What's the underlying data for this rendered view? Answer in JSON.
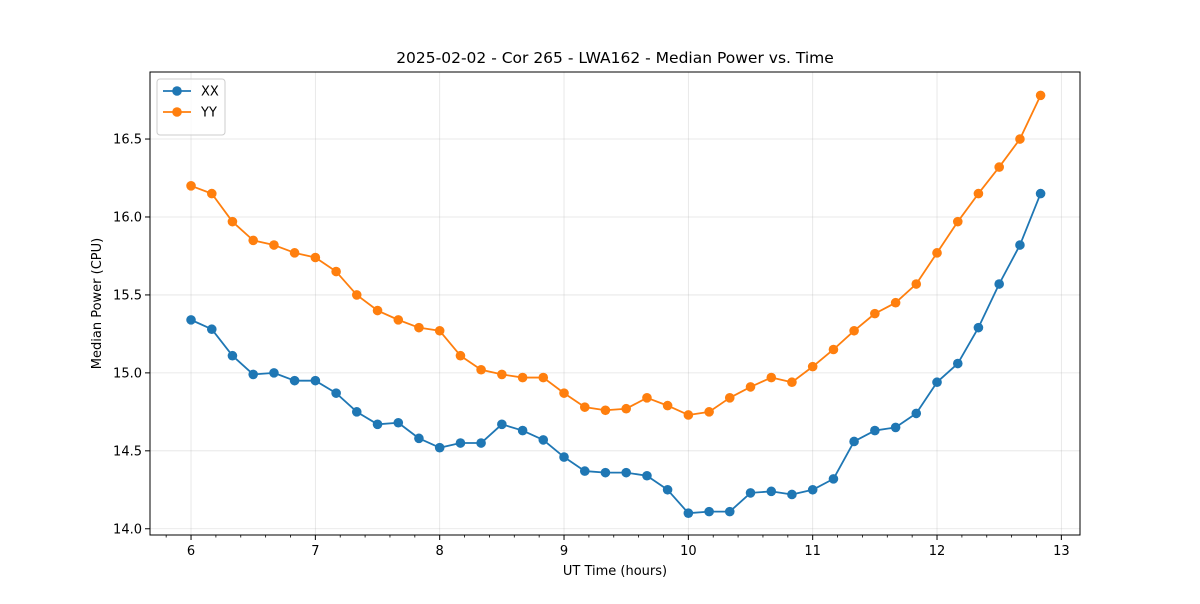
{
  "chart_data": {
    "type": "line",
    "title": "2025-02-02 - Cor 265 - LWA162 - Median Power vs. Time",
    "xlabel": "UT Time (hours)",
    "ylabel": "Median Power (CPU)",
    "xlim": [
      5.67,
      13.15
    ],
    "ylim": [
      13.96,
      16.93
    ],
    "xticks": [
      6,
      7,
      8,
      9,
      10,
      11,
      12,
      13
    ],
    "xtick_labels": [
      "6",
      "7",
      "8",
      "9",
      "10",
      "11",
      "12",
      "13"
    ],
    "yticks": [
      14.0,
      14.5,
      15.0,
      15.5,
      16.0,
      16.5
    ],
    "ytick_labels": [
      "14.0",
      "14.5",
      "15.0",
      "15.5",
      "16.0",
      "16.5"
    ],
    "grid": true,
    "legend_position": "top-left",
    "x": [
      6.0,
      6.167,
      6.333,
      6.5,
      6.667,
      6.833,
      7.0,
      7.167,
      7.333,
      7.5,
      7.667,
      7.833,
      8.0,
      8.167,
      8.333,
      8.5,
      8.667,
      8.833,
      9.0,
      9.167,
      9.333,
      9.5,
      9.667,
      9.833,
      10.0,
      10.167,
      10.333,
      10.5,
      10.667,
      10.833,
      11.0,
      11.167,
      11.333,
      11.5,
      11.667,
      11.833,
      12.0,
      12.167,
      12.333,
      12.5,
      12.667,
      12.833
    ],
    "series": [
      {
        "name": "XX",
        "color": "#1f77b4",
        "values": [
          15.34,
          15.28,
          15.11,
          14.99,
          15.0,
          14.95,
          14.95,
          14.87,
          14.75,
          14.67,
          14.68,
          14.58,
          14.52,
          14.55,
          14.55,
          14.67,
          14.63,
          14.57,
          14.46,
          14.37,
          14.36,
          14.36,
          14.34,
          14.25,
          14.1,
          14.11,
          14.11,
          14.23,
          14.24,
          14.22,
          14.25,
          14.32,
          14.56,
          14.63,
          14.65,
          14.74,
          14.94,
          15.06,
          15.29,
          15.57,
          15.82,
          16.15
        ]
      },
      {
        "name": "YY",
        "color": "#ff7f0e",
        "values": [
          16.2,
          16.15,
          15.97,
          15.85,
          15.82,
          15.77,
          15.74,
          15.65,
          15.5,
          15.4,
          15.34,
          15.29,
          15.27,
          15.11,
          15.02,
          14.99,
          14.97,
          14.97,
          14.87,
          14.78,
          14.76,
          14.77,
          14.84,
          14.79,
          14.73,
          14.75,
          14.84,
          14.91,
          14.97,
          14.94,
          15.04,
          15.15,
          15.27,
          15.38,
          15.45,
          15.57,
          15.77,
          15.97,
          16.15,
          16.32,
          16.5,
          16.78
        ]
      }
    ]
  }
}
